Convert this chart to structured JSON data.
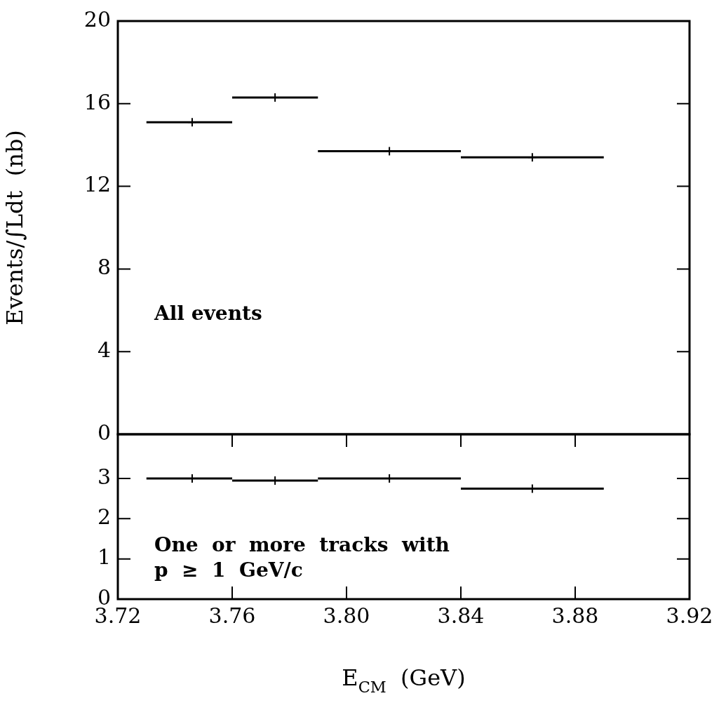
{
  "chart_data": [
    {
      "type": "scatter",
      "ylabel": "Events/∫Ldt  (nb)",
      "annotations": [
        "All events"
      ],
      "x": [
        3.746,
        3.775,
        3.815,
        3.865
      ],
      "series": [
        {
          "color": "#000000",
          "values": [
            15.1,
            16.3,
            13.7,
            13.4
          ],
          "xerrors": [
            [
              3.73,
              3.76
            ],
            [
              3.76,
              3.79
            ],
            [
              3.79,
              3.84
            ],
            [
              3.84,
              3.89
            ]
          ]
        }
      ],
      "xlim": [
        3.72,
        3.92
      ],
      "ylim": [
        0,
        20
      ],
      "yticks": [
        0,
        4,
        8,
        12,
        16,
        20
      ],
      "tick_labels": "y",
      "marker": "cross",
      "legend": false,
      "grid": false
    },
    {
      "type": "scatter",
      "xlabel": "E$_{CM}$  (GeV)",
      "annotations": [
        "One  or  more  tracks  with",
        "p  ≥  1  GeV/c"
      ],
      "x": [
        3.746,
        3.775,
        3.815,
        3.865
      ],
      "series": [
        {
          "color": "#000000",
          "values": [
            3.0,
            2.95,
            3.0,
            2.75
          ],
          "xerrors": [
            [
              3.73,
              3.76
            ],
            [
              3.76,
              3.79
            ],
            [
              3.79,
              3.84
            ],
            [
              3.84,
              3.89
            ]
          ]
        }
      ],
      "xlim": [
        3.72,
        3.92
      ],
      "xticks": [
        3.72,
        3.76,
        {
          "value": 3.8,
          "label": "3.80"
        },
        3.84,
        3.88,
        3.92
      ],
      "ylim": [
        0,
        4.1
      ],
      "yticks": [
        0,
        1,
        2,
        3
      ],
      "marker": "cross",
      "legend": false,
      "grid": false
    }
  ]
}
